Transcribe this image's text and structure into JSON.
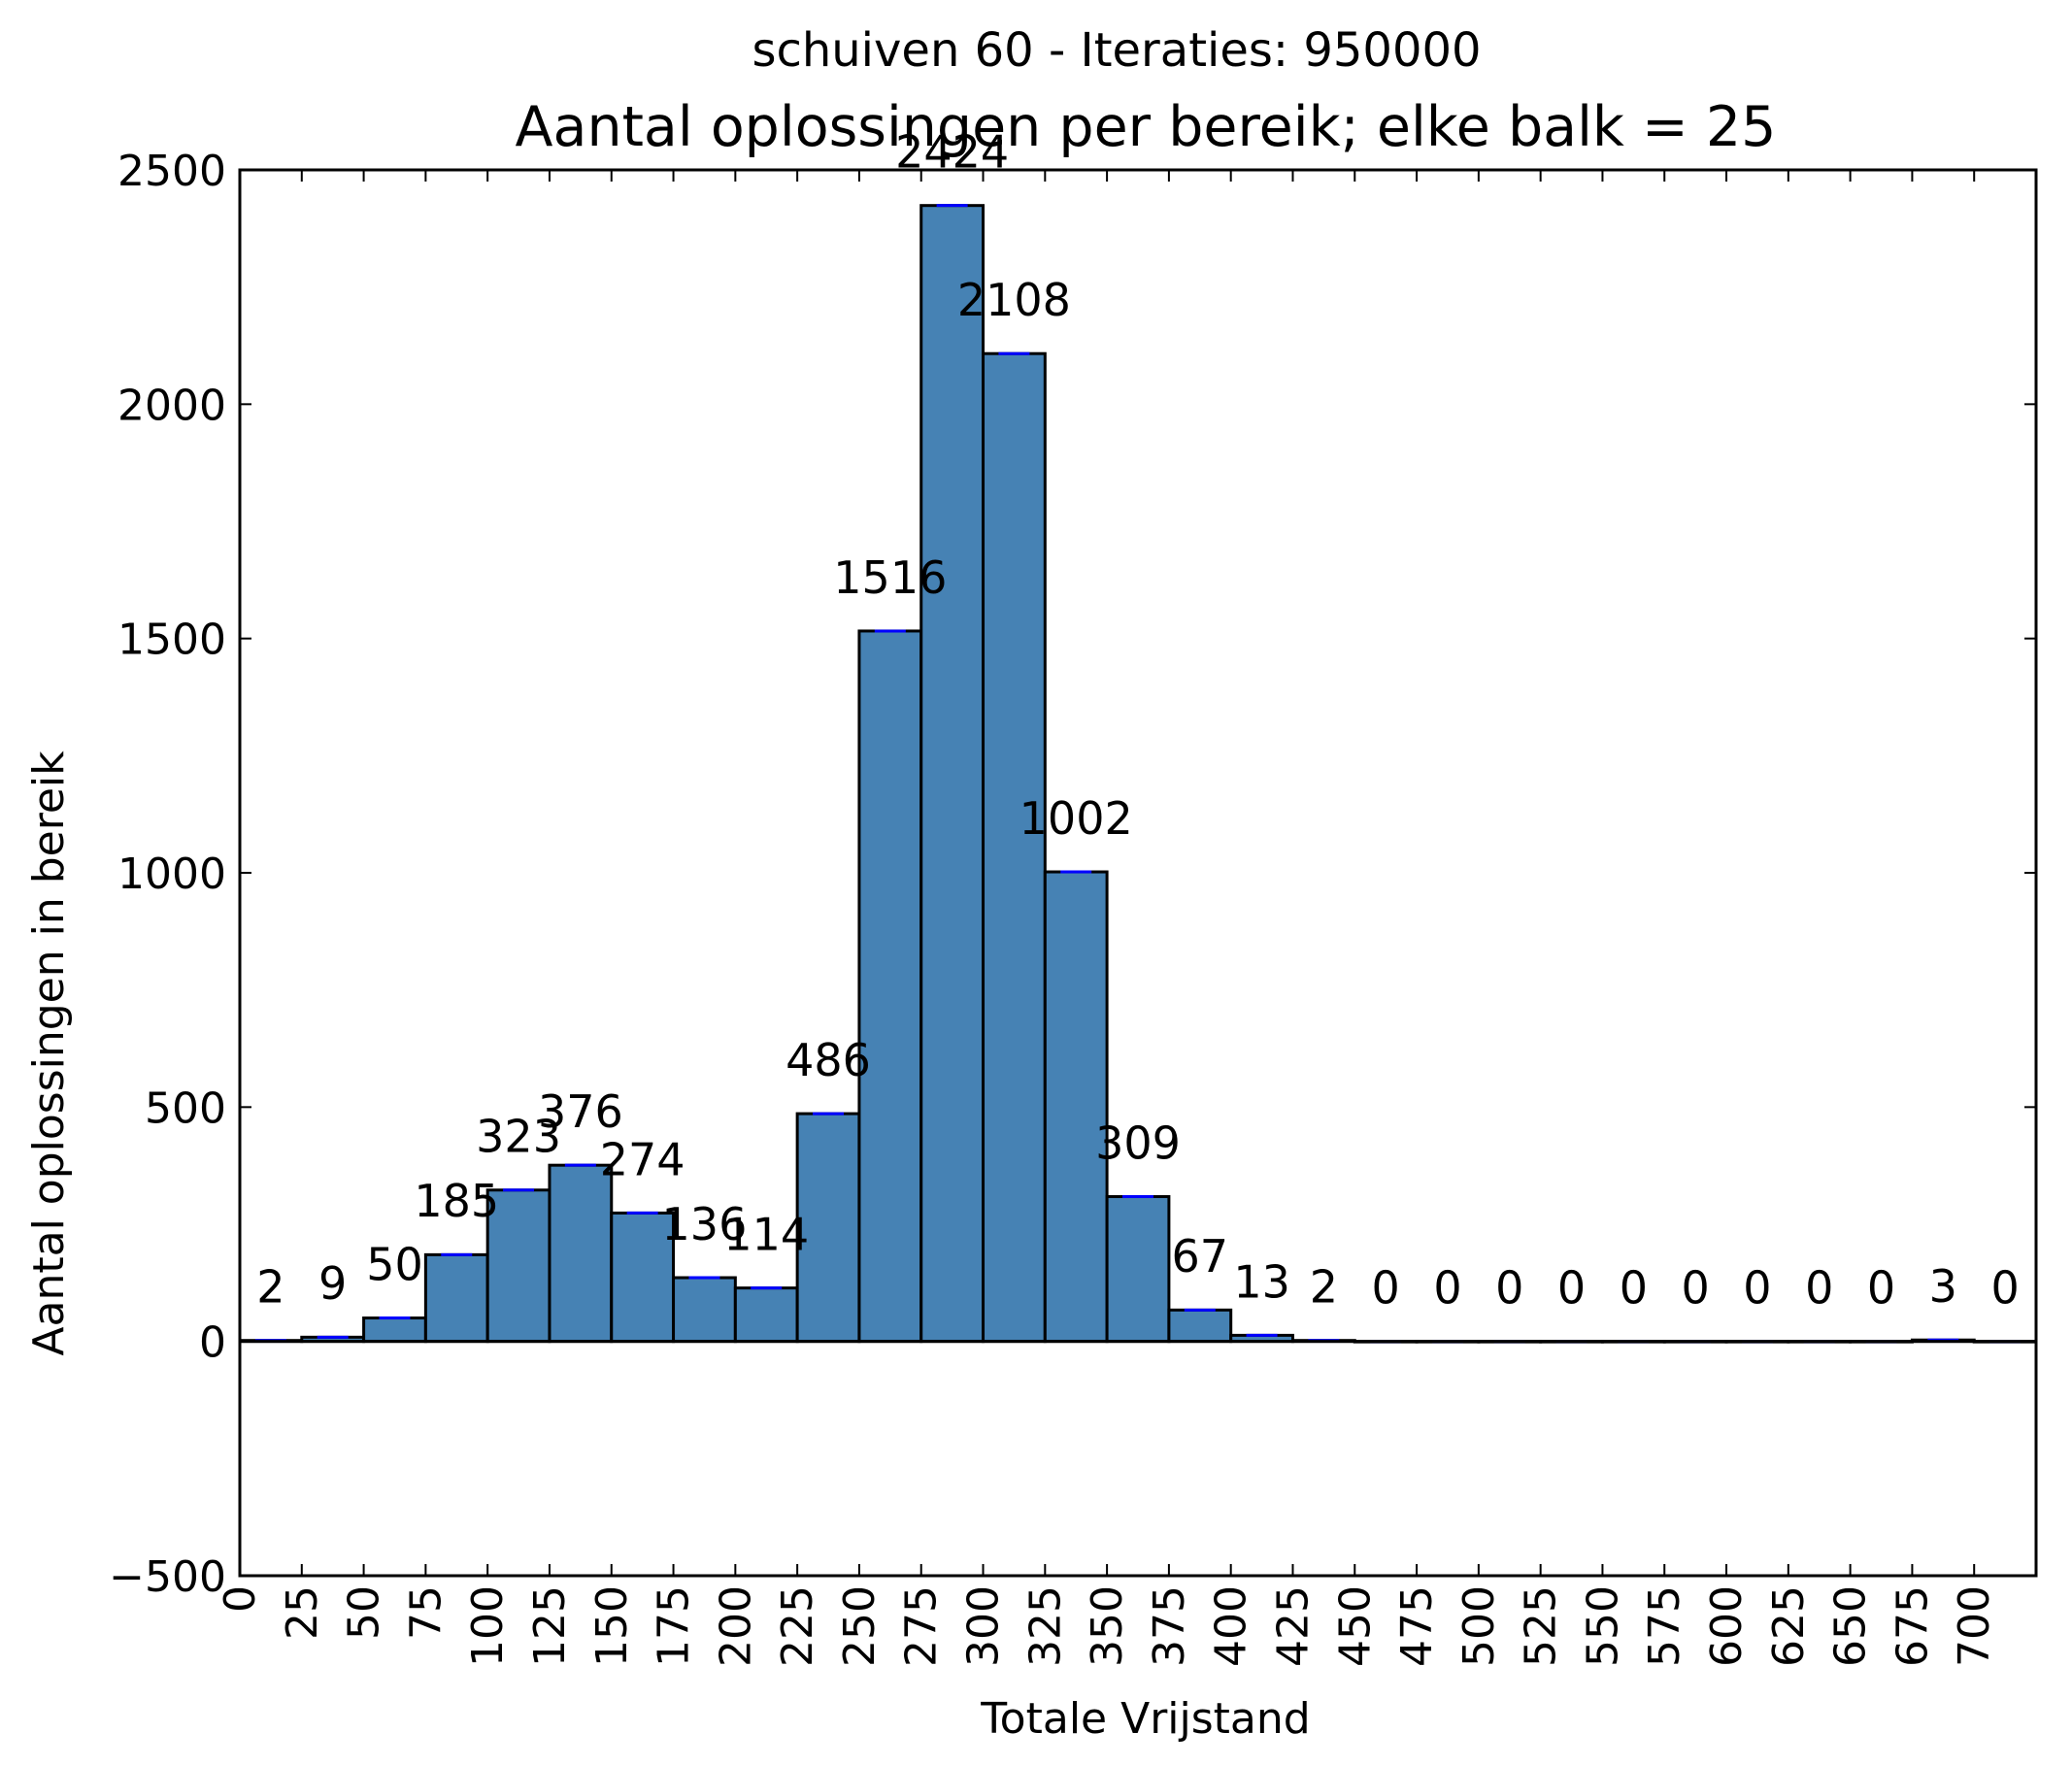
{
  "chart_data": {
    "type": "bar",
    "supertitle": "schuiven 60 - Iteraties: 950000",
    "title": "Aantal oplossingen per bereik; elke balk = 25",
    "xlabel": "Totale Vrijstand",
    "ylabel": "Aantal oplossingen in bereik",
    "bin_width": 25,
    "bin_starts": [
      0,
      25,
      50,
      75,
      100,
      125,
      150,
      175,
      200,
      225,
      250,
      275,
      300,
      325,
      350,
      375,
      400,
      425,
      450,
      475,
      500,
      525,
      550,
      575,
      600,
      625,
      650,
      675,
      700
    ],
    "values": [
      2,
      9,
      50,
      185,
      323,
      376,
      274,
      136,
      114,
      486,
      1516,
      2424,
      2108,
      1002,
      309,
      67,
      13,
      2,
      0,
      0,
      0,
      0,
      0,
      0,
      0,
      0,
      0,
      3,
      0
    ],
    "value_labels": [
      "2",
      "9",
      "50",
      "185",
      "323",
      "376",
      "274",
      "136",
      "114",
      "486",
      "1516",
      "2424",
      "2108",
      "1002",
      "309",
      "67",
      "13",
      "2",
      "0",
      "0",
      "0",
      "0",
      "0",
      "0",
      "0",
      "0",
      "0",
      "3",
      "0"
    ],
    "xlim": [
      0,
      725
    ],
    "ylim": [
      -500,
      2500
    ],
    "xticks": [
      0,
      25,
      50,
      75,
      100,
      125,
      150,
      175,
      200,
      225,
      250,
      275,
      300,
      325,
      350,
      375,
      400,
      425,
      450,
      475,
      500,
      525,
      550,
      575,
      600,
      625,
      650,
      675,
      700
    ],
    "xtick_labels": [
      "0",
      "25",
      "50",
      "75",
      "100",
      "125",
      "150",
      "175",
      "200",
      "225",
      "250",
      "275",
      "300",
      "325",
      "350",
      "375",
      "400",
      "425",
      "450",
      "475",
      "500",
      "525",
      "550",
      "575",
      "600",
      "625",
      "650",
      "675",
      "700"
    ],
    "yticks": [
      -500,
      0,
      500,
      1000,
      1500,
      2000,
      2500
    ],
    "ytick_labels": [
      "−500",
      "0",
      "500",
      "1000",
      "1500",
      "2000",
      "2500"
    ],
    "grid": false,
    "colors": {
      "bar_fill": "#4682b4",
      "bar_edge": "#000000",
      "bar_top_accent": "#0000ff"
    }
  }
}
